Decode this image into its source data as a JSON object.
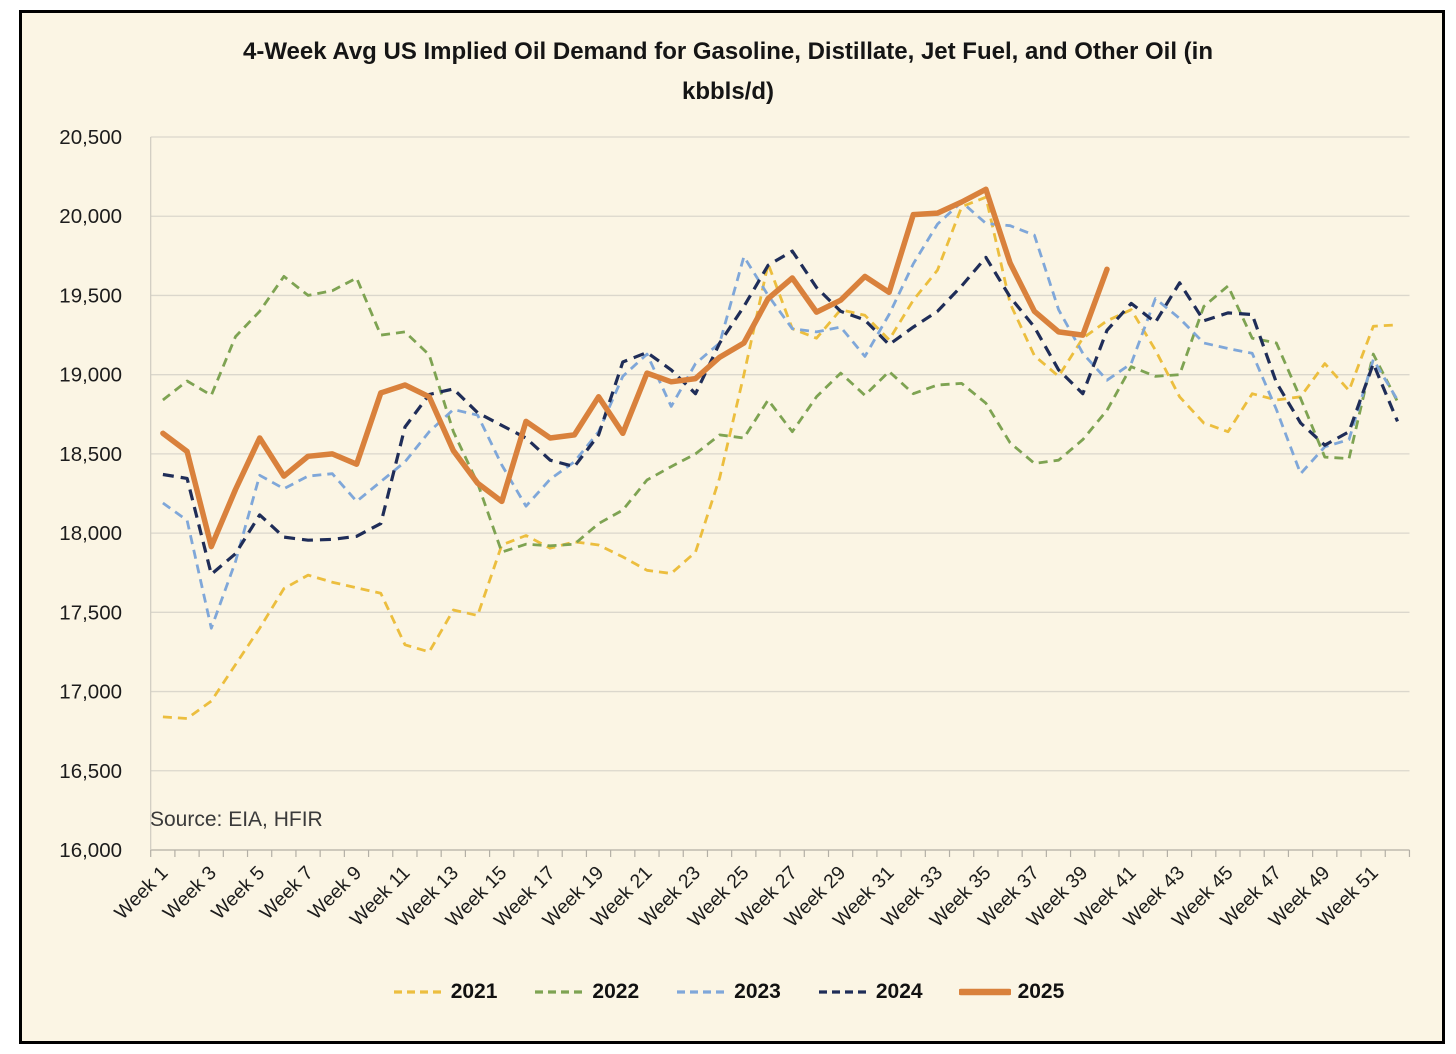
{
  "window": {
    "frame_border_color": "#000000",
    "plot_background": "#FBF5E4",
    "gridline_color": "#DBD7CC",
    "axis_line_color": "#B3AFA5",
    "tick_color": "#B3AFA5",
    "label_color": "#1C1C1C"
  },
  "header": {
    "title_line1": "4-Week Avg US Implied Oil Demand for Gasoline, Distillate, Jet Fuel, and Other Oil (in",
    "title_line2": "kbbls/d)"
  },
  "source_note": "Source: EIA, HFIR",
  "chart_data": {
    "type": "line",
    "title": "4-Week Avg US Implied Oil Demand for Gasoline, Distillate, Jet Fuel, and Other Oil (in kbbls/d)",
    "xlabel": "",
    "ylabel": "",
    "ylim": [
      16000,
      20500
    ],
    "y_ticks": [
      16000,
      16500,
      17000,
      17500,
      18000,
      18500,
      19000,
      19500,
      20000,
      20500
    ],
    "x_unit": "week_of_year",
    "x_range": [
      1,
      52
    ],
    "x_tick_labels": [
      "Week 1",
      "Week 3",
      "Week 5",
      "Week 7",
      "Week 9",
      "Week 11",
      "Week 13",
      "Week 15",
      "Week 17",
      "Week 19",
      "Week 21",
      "Week 23",
      "Week 25",
      "Week 27",
      "Week 29",
      "Week 31",
      "Week 33",
      "Week 35",
      "Week 37",
      "Week 39",
      "Week 41",
      "Week 43",
      "Week 45",
      "Week 47",
      "Week 49",
      "Week 51"
    ],
    "grid": "horizontal",
    "legend_position": "bottom",
    "series": [
      {
        "name": "2021",
        "color": "#ECBE3E",
        "style": "dashed",
        "line_width": 2.8,
        "values": [
          16840,
          16830,
          16940,
          17170,
          17400,
          17650,
          17735,
          17690,
          17655,
          17620,
          17295,
          17250,
          17515,
          17480,
          17925,
          17985,
          17905,
          17945,
          17925,
          17850,
          17765,
          17745,
          17880,
          18350,
          19000,
          19700,
          19290,
          19230,
          19410,
          19375,
          19220,
          19470,
          19660,
          20060,
          20120,
          19450,
          19120,
          18990,
          19230,
          19340,
          19410,
          19155,
          18860,
          18695,
          18640,
          18880,
          18840,
          18860,
          19070,
          18900,
          19305,
          19315
        ]
      },
      {
        "name": "2022",
        "color": "#7EA352",
        "style": "dashed",
        "line_width": 2.8,
        "values": [
          18840,
          18960,
          18870,
          19240,
          19400,
          19620,
          19500,
          19530,
          19610,
          19250,
          19270,
          19125,
          18640,
          18315,
          17880,
          17930,
          17920,
          17930,
          18060,
          18145,
          18335,
          18420,
          18500,
          18620,
          18600,
          18840,
          18640,
          18860,
          19010,
          18870,
          19020,
          18880,
          18935,
          18945,
          18820,
          18570,
          18440,
          18460,
          18590,
          18775,
          19050,
          18990,
          19000,
          19430,
          19560,
          19230,
          19200,
          18850,
          18480,
          18470,
          19130,
          18830
        ]
      },
      {
        "name": "2023",
        "color": "#7FA7D9",
        "style": "dashed",
        "line_width": 2.8,
        "values": [
          18190,
          18080,
          17400,
          17820,
          18365,
          18280,
          18360,
          18375,
          18200,
          18325,
          18450,
          18640,
          18780,
          18745,
          18430,
          18170,
          18340,
          18450,
          18640,
          18990,
          19130,
          18800,
          19070,
          19200,
          19745,
          19500,
          19290,
          19270,
          19300,
          19115,
          19380,
          19700,
          19950,
          20090,
          19955,
          19940,
          19880,
          19410,
          19135,
          18965,
          19070,
          19480,
          19355,
          19200,
          19165,
          19135,
          18780,
          18375,
          18545,
          18590,
          19095,
          18840
        ]
      },
      {
        "name": "2024",
        "color": "#1F2D58",
        "style": "dashed",
        "line_width": 3.2,
        "values": [
          18370,
          18345,
          17740,
          17870,
          18115,
          17975,
          17955,
          17960,
          17980,
          18060,
          18670,
          18875,
          18910,
          18760,
          18680,
          18600,
          18460,
          18420,
          18620,
          19080,
          19140,
          19030,
          18880,
          19200,
          19430,
          19690,
          19780,
          19550,
          19400,
          19345,
          19190,
          19300,
          19400,
          19560,
          19740,
          19490,
          19300,
          19030,
          18880,
          19280,
          19450,
          19330,
          19580,
          19340,
          19390,
          19380,
          18950,
          18695,
          18555,
          18640,
          19070,
          18705
        ]
      },
      {
        "name": "2025",
        "color": "#D9813C",
        "style": "solid",
        "line_width": 5.5,
        "values": [
          18630,
          18515,
          17915,
          18275,
          18600,
          18360,
          18485,
          18500,
          18435,
          18885,
          18935,
          18860,
          18520,
          18315,
          18200,
          18705,
          18600,
          18620,
          18860,
          18630,
          19010,
          18955,
          18975,
          19110,
          19200,
          19480,
          19610,
          19395,
          19470,
          19620,
          19520,
          20010,
          20020,
          20090,
          20170,
          19705,
          19400,
          19270,
          19250,
          19665
        ]
      }
    ]
  }
}
